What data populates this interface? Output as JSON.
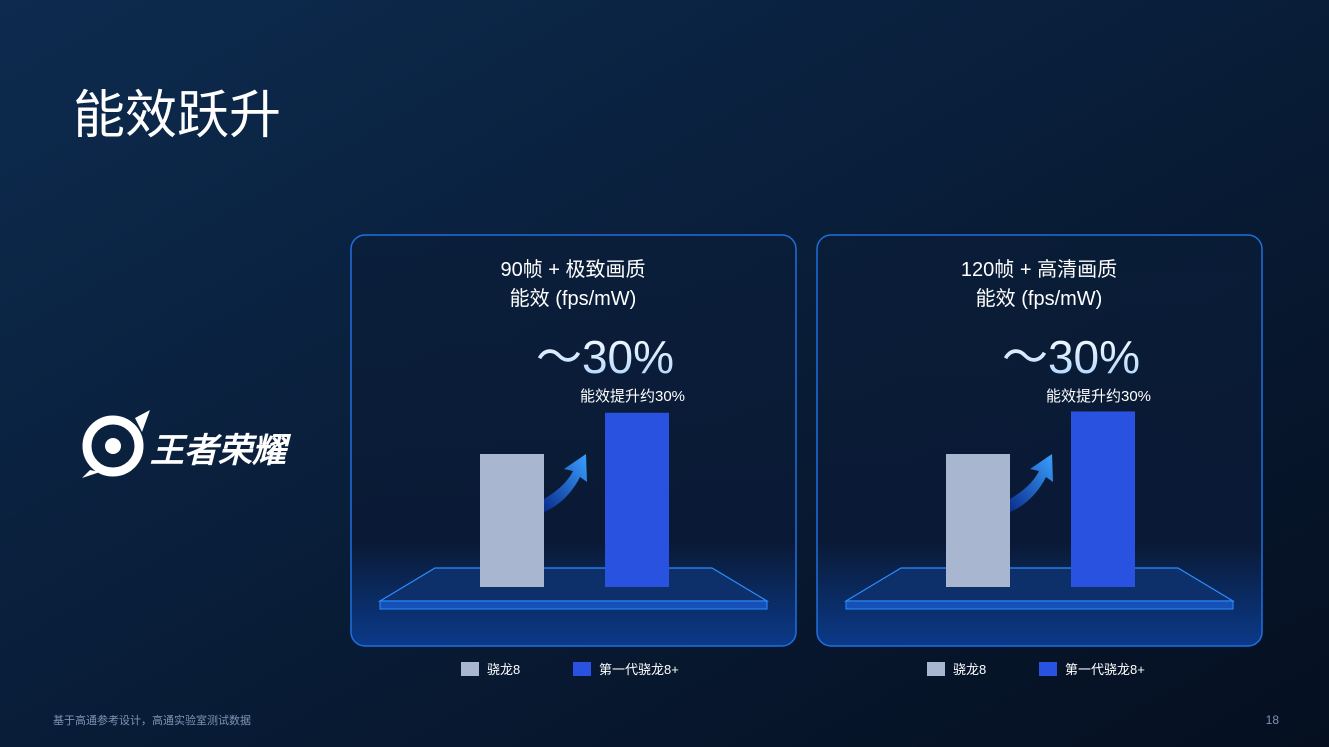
{
  "header": {
    "title": "能效跃升",
    "logo": "王者荣耀"
  },
  "chart_data": [
    {
      "type": "bar",
      "title": "90帧 + 极致画质",
      "subtitle": "能效 (fps/mW)",
      "annotation": "～30%",
      "annotation_note": "能效提升约30%",
      "series": [
        {
          "name": "骁龙8",
          "color": "#a9b6cf",
          "values": [
            100
          ]
        },
        {
          "name": "第一代骁龙8+",
          "color": "#2a52e0",
          "values": [
            131
          ]
        }
      ]
    },
    {
      "type": "bar",
      "title": "120帧 + 高清画质",
      "subtitle": "能效 (fps/mW)",
      "annotation": "～30%",
      "annotation_note": "能效提升约30%",
      "series": [
        {
          "name": "骁龙8",
          "color": "#a9b6cf",
          "values": [
            100
          ]
        },
        {
          "name": "第一代骁龙8+",
          "color": "#2a52e0",
          "values": [
            132
          ]
        }
      ]
    }
  ],
  "footer": {
    "note": "基于高通参考设计，高通实验室测试数据",
    "page": 18
  }
}
